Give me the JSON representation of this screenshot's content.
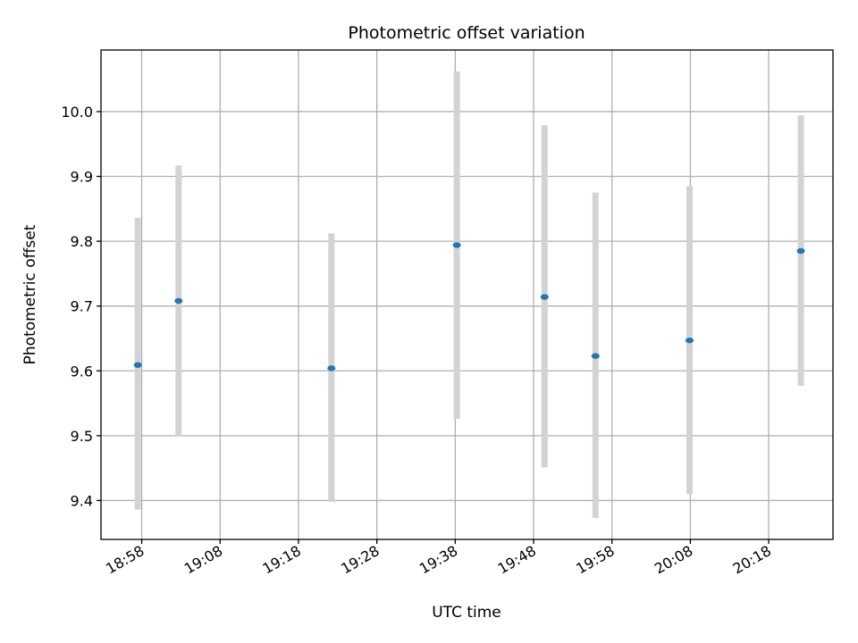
{
  "chart_data": {
    "type": "scatter",
    "title": "Photometric offset variation",
    "xlabel": "UTC time",
    "ylabel": "Photometric offset",
    "x_tick_labels": [
      "18:58",
      "19:08",
      "19:18",
      "19:28",
      "19:38",
      "19:48",
      "19:58",
      "20:08",
      "20:18"
    ],
    "y_ticks": [
      9.4,
      9.5,
      9.6,
      9.7,
      9.8,
      9.9,
      10.0
    ],
    "y_tick_labels": [
      "9.4",
      "9.5",
      "9.6",
      "9.7",
      "9.8",
      "9.9",
      "10.0"
    ],
    "xlim": [
      "18:52.8",
      "20:26.2"
    ],
    "ylim": [
      9.34,
      10.095
    ],
    "grid": true,
    "marker_color": "#1f77b4",
    "errorbar_color": "#d3d3d3",
    "points": [
      {
        "x": "18:57.5",
        "y": 9.609,
        "yerr_low": 9.386,
        "yerr_high": 9.836
      },
      {
        "x": "19:02.7",
        "y": 9.708,
        "yerr_low": 9.5,
        "yerr_high": 9.917
      },
      {
        "x": "19:22.2",
        "y": 9.604,
        "yerr_low": 9.398,
        "yerr_high": 9.812
      },
      {
        "x": "19:38.2",
        "y": 9.794,
        "yerr_low": 9.526,
        "yerr_high": 10.062
      },
      {
        "x": "19:49.4",
        "y": 9.714,
        "yerr_low": 9.451,
        "yerr_high": 9.979
      },
      {
        "x": "19:55.9",
        "y": 9.623,
        "yerr_low": 9.373,
        "yerr_high": 9.875
      },
      {
        "x": "20:07.9",
        "y": 9.647,
        "yerr_low": 9.41,
        "yerr_high": 9.885
      },
      {
        "x": "20:22.1",
        "y": 9.785,
        "yerr_low": 9.577,
        "yerr_high": 9.994
      }
    ]
  }
}
